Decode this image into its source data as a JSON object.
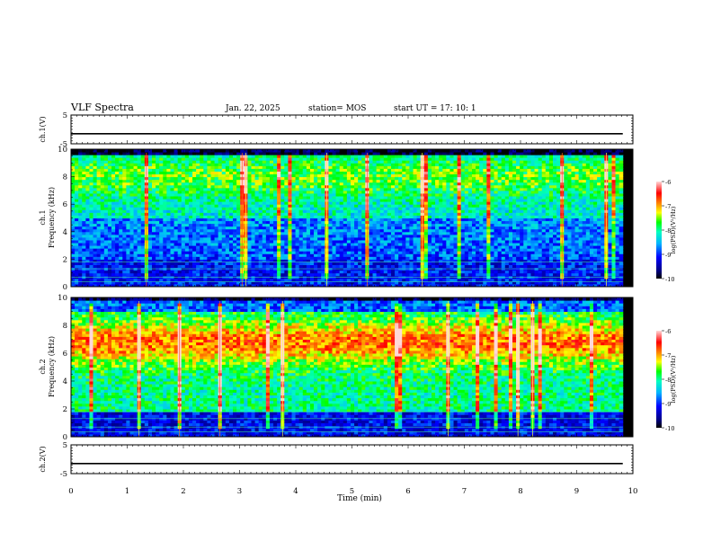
{
  "header": {
    "title": "VLF Spectra",
    "date": "Jan. 22, 2025",
    "station": "station= MOS",
    "start": "start UT =  17: 10: 1"
  },
  "chart_data": [
    {
      "type": "line",
      "panel": "ch1-waveform",
      "ylabel": "ch.1(V)",
      "ylim": [
        -5,
        5
      ],
      "yticks": [
        "5",
        "-5"
      ],
      "x": [
        0,
        9.82
      ],
      "series": [
        {
          "values": [
            -1.5,
            -1.5
          ]
        }
      ]
    },
    {
      "type": "heatmap",
      "panel": "ch1-spectrogram",
      "ylabel": "ch.1\nFrequency (kHz)",
      "ylim": [
        0,
        10
      ],
      "xlim": [
        0,
        9.82
      ],
      "yticks": [
        "0",
        "2",
        "4",
        "6",
        "8",
        "10"
      ],
      "colorbar": {
        "label": "log(PSD)(V²/Hz)",
        "range": [
          -10,
          -6
        ],
        "ticks": [
          "-6",
          "-7",
          "-8",
          "-9",
          "-10"
        ]
      }
    },
    {
      "type": "heatmap",
      "panel": "ch2-spectrogram",
      "ylabel": "ch.2\nFrequency (kHz)",
      "ylim": [
        0,
        10
      ],
      "xlim": [
        0,
        9.82
      ],
      "yticks": [
        "0",
        "2",
        "4",
        "6",
        "8",
        "10"
      ],
      "colorbar": {
        "label": "log(PSD)(V²/Hz)",
        "range": [
          -10,
          -6
        ],
        "ticks": [
          "-6",
          "-7",
          "-8",
          "-9",
          "-10"
        ]
      }
    },
    {
      "type": "line",
      "panel": "ch2-waveform",
      "ylabel": "ch.2(V)",
      "ylim": [
        -5,
        5
      ],
      "yticks": [
        "5",
        "-5"
      ],
      "x": [
        0,
        9.82
      ],
      "series": [
        {
          "values": [
            -1.5,
            -1.5
          ]
        }
      ]
    }
  ],
  "xaxis": {
    "label": "Time (min)",
    "ticks": [
      "0",
      "1",
      "2",
      "3",
      "4",
      "5",
      "6",
      "7",
      "8",
      "9",
      "10"
    ],
    "range": [
      0,
      10
    ]
  }
}
